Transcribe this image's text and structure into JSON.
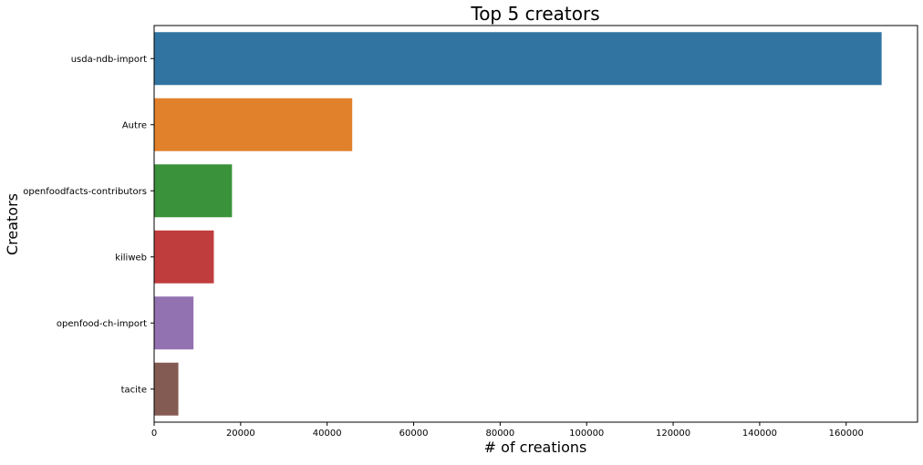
{
  "chart_data": {
    "type": "bar",
    "orientation": "horizontal",
    "title": "Top 5 creators",
    "xlabel": "# of creations",
    "ylabel": "Creators",
    "categories": [
      "usda-ndb-import",
      "Autre",
      "openfoodfacts-contributors",
      "kiliweb",
      "openfood-ch-import",
      "tacite"
    ],
    "values": [
      168200,
      45800,
      18000,
      13800,
      9100,
      5600
    ],
    "colors": [
      "#3274a1",
      "#e1812c",
      "#3a923a",
      "#c03d3e",
      "#9372b2",
      "#845b53"
    ],
    "xlim": [
      0,
      176500
    ],
    "xticks": [
      0,
      20000,
      40000,
      60000,
      80000,
      100000,
      120000,
      140000,
      160000
    ],
    "grid": false,
    "legend": "none"
  }
}
